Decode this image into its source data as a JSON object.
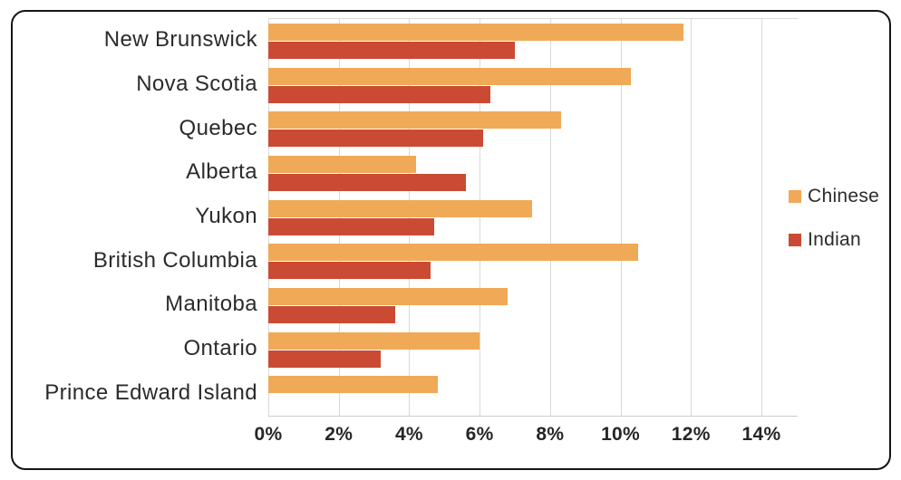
{
  "frame": {
    "background_color": "#ffffff",
    "border_color": "#141414"
  },
  "colors": {
    "chinese_bar": "#F0A956",
    "indian_bar": "#CB4A33",
    "gridline": "#d9d9d9",
    "text": "#2b2b2b"
  },
  "chart_data": {
    "type": "bar",
    "orientation": "horizontal",
    "title": "",
    "xlabel": "",
    "ylabel": "",
    "categories": [
      "New Brunswick",
      "Nova Scotia",
      "Quebec",
      "Alberta",
      "Yukon",
      "British Columbia",
      "Manitoba",
      "Ontario",
      "Prince Edward Island"
    ],
    "series": [
      {
        "name": "Chinese",
        "color": "#F0A956",
        "values": [
          11.8,
          10.3,
          8.3,
          4.2,
          7.5,
          10.5,
          6.8,
          6.0,
          4.8
        ]
      },
      {
        "name": "Indian",
        "color": "#CB4A33",
        "values": [
          7.0,
          6.3,
          6.1,
          5.6,
          4.7,
          4.6,
          3.6,
          3.2,
          0
        ]
      }
    ],
    "unit": "%",
    "x_ticks": [
      "0%",
      "2%",
      "4%",
      "6%",
      "8%",
      "10%",
      "12%",
      "14%"
    ],
    "x_tick_values": [
      0,
      2,
      4,
      6,
      8,
      10,
      12,
      14
    ],
    "xlim": [
      0,
      15.03
    ],
    "grid": "vertical",
    "legend_position": "right"
  }
}
